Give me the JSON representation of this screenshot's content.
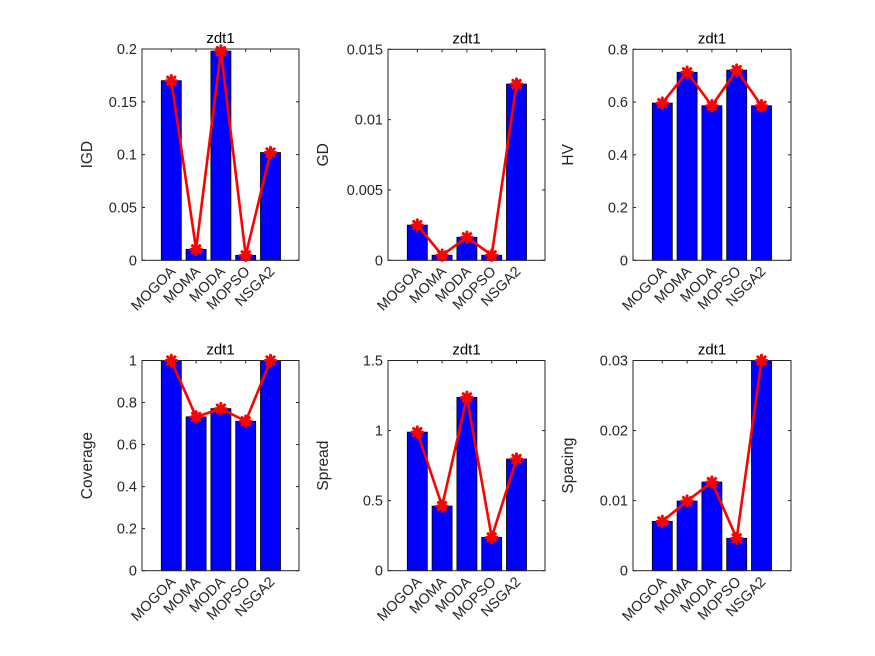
{
  "figure": {
    "background": "#ffffff",
    "bar_color": "#0000ff",
    "bar_edge_color": "#000000",
    "line_color": "#ff0000",
    "marker": "asterisk"
  },
  "chart_data": [
    {
      "type": "bar",
      "title": "zdt1",
      "xlabel": "",
      "ylabel": "IGD",
      "categories": [
        "MOGOA",
        "MOMA",
        "MODA",
        "MOPSO",
        "NSGA2"
      ],
      "values": [
        0.17,
        0.0104,
        0.198,
        0.0047,
        0.102
      ],
      "overlay_line": true,
      "ylim": [
        0,
        0.2
      ],
      "yticks": [
        0,
        0.05,
        0.1,
        0.15,
        0.2
      ],
      "ytick_labels": [
        "0",
        "0.05",
        "0.1",
        "0.15",
        "0.2"
      ],
      "grid": false,
      "legend": "none"
    },
    {
      "type": "bar",
      "title": "zdt1",
      "xlabel": "",
      "ylabel": "GD",
      "categories": [
        "MOGOA",
        "MOMA",
        "MODA",
        "MOPSO",
        "NSGA2"
      ],
      "values": [
        0.0025,
        0.00036,
        0.00164,
        0.00036,
        0.01253
      ],
      "overlay_line": true,
      "ylim": [
        0,
        0.015
      ],
      "yticks": [
        0,
        0.005,
        0.01,
        0.015
      ],
      "ytick_labels": [
        "0",
        "0.005",
        "0.01",
        "0.015"
      ],
      "grid": false,
      "legend": "none"
    },
    {
      "type": "bar",
      "title": "zdt1",
      "xlabel": "",
      "ylabel": "HV",
      "categories": [
        "MOGOA",
        "MOMA",
        "MODA",
        "MOPSO",
        "NSGA2"
      ],
      "values": [
        0.596,
        0.713,
        0.586,
        0.721,
        0.586
      ],
      "overlay_line": true,
      "ylim": [
        0,
        0.8
      ],
      "yticks": [
        0,
        0.2,
        0.4,
        0.6,
        0.8
      ],
      "ytick_labels": [
        "0",
        "0.2",
        "0.4",
        "0.6",
        "0.8"
      ],
      "grid": false,
      "legend": "none"
    },
    {
      "type": "bar",
      "title": "zdt1",
      "xlabel": "",
      "ylabel": "Coverage",
      "categories": [
        "MOGOA",
        "MOMA",
        "MODA",
        "MOPSO",
        "NSGA2"
      ],
      "values": [
        1.0,
        0.732,
        0.771,
        0.711,
        1.0
      ],
      "overlay_line": true,
      "ylim": [
        0,
        1
      ],
      "yticks": [
        0,
        0.2,
        0.4,
        0.6,
        0.8,
        1
      ],
      "ytick_labels": [
        "0",
        "0.2",
        "0.4",
        "0.6",
        "0.8",
        "1"
      ],
      "grid": false,
      "legend": "none"
    },
    {
      "type": "bar",
      "title": "zdt1",
      "xlabel": "",
      "ylabel": "Spread",
      "categories": [
        "MOGOA",
        "MOMA",
        "MODA",
        "MOPSO",
        "NSGA2"
      ],
      "values": [
        0.989,
        0.461,
        1.237,
        0.238,
        0.797
      ],
      "overlay_line": true,
      "ylim": [
        0,
        1.5
      ],
      "yticks": [
        0,
        0.5,
        1,
        1.5
      ],
      "ytick_labels": [
        "0",
        "0.5",
        "1",
        "1.5"
      ],
      "grid": false,
      "legend": "none"
    },
    {
      "type": "bar",
      "title": "zdt1",
      "xlabel": "",
      "ylabel": "Spacing",
      "categories": [
        "MOGOA",
        "MOMA",
        "MODA",
        "MOPSO",
        "NSGA2"
      ],
      "values": [
        0.00704,
        0.00994,
        0.01265,
        0.00462,
        0.03
      ],
      "overlay_line": true,
      "ylim": [
        0,
        0.03
      ],
      "yticks": [
        0,
        0.01,
        0.02,
        0.03
      ],
      "ytick_labels": [
        "0",
        "0.01",
        "0.02",
        "0.03"
      ],
      "grid": false,
      "legend": "none"
    }
  ]
}
